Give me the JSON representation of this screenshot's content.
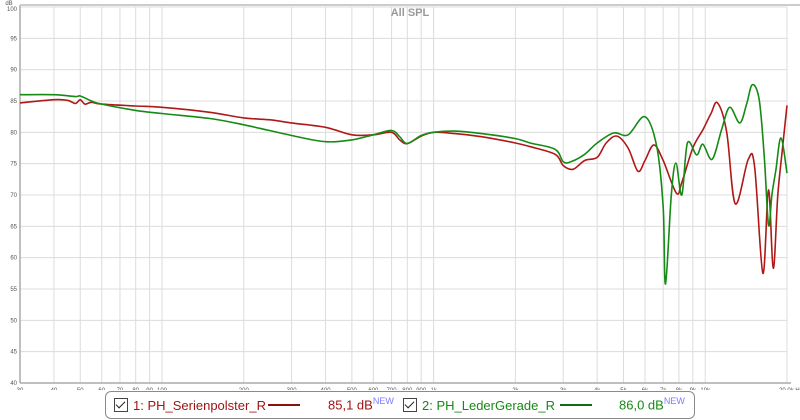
{
  "chart_data": {
    "type": "line",
    "title": "All SPL",
    "ylabel": "dB",
    "xlabel": "Hz",
    "xscale": "log",
    "xlim": [
      30,
      20000
    ],
    "ylim": [
      40,
      100
    ],
    "grid": true,
    "legend_position": "bottom",
    "yticks": [
      40,
      45,
      50,
      55,
      60,
      65,
      70,
      75,
      80,
      85,
      90,
      95,
      100
    ],
    "xticks": [
      {
        "v": 30,
        "label": "30"
      },
      {
        "v": 40,
        "label": "40"
      },
      {
        "v": 50,
        "label": "50"
      },
      {
        "v": 60,
        "label": "60"
      },
      {
        "v": 70,
        "label": "70"
      },
      {
        "v": 80,
        "label": "80"
      },
      {
        "v": 90,
        "label": "90"
      },
      {
        "v": 100,
        "label": "100"
      },
      {
        "v": 200,
        "label": "200"
      },
      {
        "v": 300,
        "label": "300"
      },
      {
        "v": 400,
        "label": "400"
      },
      {
        "v": 500,
        "label": "500"
      },
      {
        "v": 600,
        "label": "600"
      },
      {
        "v": 700,
        "label": "700"
      },
      {
        "v": 800,
        "label": "800"
      },
      {
        "v": 900,
        "label": "900"
      },
      {
        "v": 1000,
        "label": "1k"
      },
      {
        "v": 2000,
        "label": "2k"
      },
      {
        "v": 3000,
        "label": "3k"
      },
      {
        "v": 4000,
        "label": "4k"
      },
      {
        "v": 5000,
        "label": "5k"
      },
      {
        "v": 6000,
        "label": "6k"
      },
      {
        "v": 7000,
        "label": "7k"
      },
      {
        "v": 8000,
        "label": "8k"
      },
      {
        "v": 9000,
        "label": "9k"
      },
      {
        "v": 10000,
        "label": "10k"
      },
      {
        "v": 20000,
        "label": "20,0k Hz"
      }
    ],
    "series": [
      {
        "name": "1: PH_Serienpolster_R",
        "color": "#b01818",
        "legend_value": "85,1 dB",
        "badge": "NEW",
        "x": [
          30,
          40,
          45,
          48,
          50,
          52,
          55,
          60,
          80,
          100,
          150,
          200,
          250,
          300,
          400,
          500,
          600,
          700,
          750,
          800,
          900,
          1000,
          1200,
          1500,
          2000,
          2270,
          2800,
          3000,
          3260,
          3600,
          4000,
          4320,
          4730,
          5200,
          5650,
          6000,
          6470,
          7000,
          7830,
          8200,
          9000,
          9800,
          10500,
          11100,
          12000,
          12900,
          14400,
          15200,
          16300,
          17100,
          17800,
          18500,
          19200,
          20000
        ],
        "y": [
          84.7,
          85.2,
          85.1,
          84.6,
          85.2,
          84.5,
          84.8,
          84.5,
          84.2,
          84.0,
          83.2,
          82.3,
          82.0,
          81.5,
          80.8,
          79.6,
          79.6,
          80.0,
          78.8,
          78.2,
          79.4,
          80.0,
          79.8,
          79.3,
          78.3,
          77.7,
          76.5,
          74.7,
          74.1,
          75.5,
          76.0,
          78.3,
          79.4,
          77.5,
          73.8,
          75.5,
          78.0,
          75.5,
          70.3,
          72.0,
          77.5,
          80.4,
          83.0,
          84.7,
          80.0,
          68.6,
          75.7,
          74.5,
          57.5,
          70.8,
          58.3,
          70.0,
          77.0,
          84.3
        ]
      },
      {
        "name": "2: PH_LederGerade_R",
        "color": "#158a15",
        "legend_value": "86,0 dB",
        "badge": "NEW",
        "x": [
          30,
          40,
          48,
          50,
          55,
          60,
          80,
          100,
          150,
          200,
          300,
          400,
          500,
          600,
          700,
          750,
          800,
          900,
          1000,
          1200,
          1500,
          2000,
          2270,
          2800,
          3000,
          3200,
          3600,
          4000,
          4600,
          5200,
          6000,
          6630,
          7000,
          7140,
          7500,
          7800,
          8200,
          8600,
          9300,
          9800,
          10600,
          11500,
          12300,
          13400,
          14200,
          14900,
          15800,
          16500,
          17100,
          17600,
          18200,
          19000,
          20000
        ],
        "y": [
          86.0,
          86.0,
          85.7,
          85.8,
          85.0,
          84.5,
          83.5,
          83.0,
          82.2,
          81.2,
          79.5,
          78.5,
          78.8,
          79.6,
          80.3,
          79.3,
          78.2,
          79.5,
          80.0,
          80.2,
          79.8,
          79.0,
          78.3,
          77.3,
          75.3,
          75.3,
          76.5,
          78.3,
          79.9,
          79.6,
          82.5,
          77.7,
          68.0,
          55.8,
          70.0,
          75.1,
          70.0,
          78.3,
          76.4,
          78.1,
          75.7,
          80.5,
          84.0,
          81.5,
          84.5,
          87.6,
          85.2,
          76.0,
          65.2,
          70.0,
          74.0,
          79.1,
          73.5
        ]
      }
    ]
  }
}
